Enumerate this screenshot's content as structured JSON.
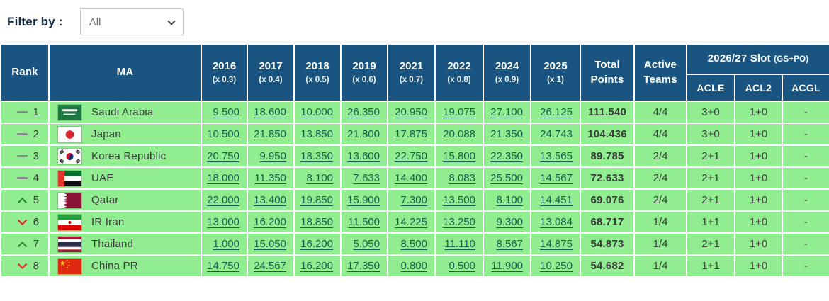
{
  "filter": {
    "label": "Filter by :",
    "value": "All",
    "options": [
      "All"
    ]
  },
  "table": {
    "header": {
      "rank": "Rank",
      "ma": "MA",
      "years": [
        {
          "year": "2016",
          "mult": "(x 0.3)"
        },
        {
          "year": "2017",
          "mult": "(x 0.4)"
        },
        {
          "year": "2018",
          "mult": "(x 0.5)"
        },
        {
          "year": "2019",
          "mult": "(x 0.6)"
        },
        {
          "year": "2021",
          "mult": "(x 0.7)"
        },
        {
          "year": "2022",
          "mult": "(x 0.8)"
        },
        {
          "year": "2024",
          "mult": "(x 0.9)"
        },
        {
          "year": "2025",
          "mult": "(x 1)"
        }
      ],
      "total": "Total Points",
      "active": "Active Teams",
      "slot_title": "2026/27 Slot",
      "slot_subtitle": "(GS+PO)",
      "slot_cols": [
        "ACLE",
        "ACL2",
        "ACGL"
      ]
    },
    "rows": [
      {
        "rank": "1",
        "trend": "same",
        "country": "Saudi Arabia",
        "flag": "sa",
        "scores": [
          "9.500",
          "18.600",
          "10.000",
          "26.350",
          "20.950",
          "19.075",
          "27.100",
          "26.125"
        ],
        "total": "111.540",
        "active": "4/4",
        "acle": "3+0",
        "acl2": "1+0",
        "acgl": "-"
      },
      {
        "rank": "2",
        "trend": "same",
        "country": "Japan",
        "flag": "jp",
        "scores": [
          "10.500",
          "21.850",
          "13.850",
          "21.800",
          "17.875",
          "20.088",
          "21.350",
          "24.743"
        ],
        "total": "104.436",
        "active": "4/4",
        "acle": "3+0",
        "acl2": "1+0",
        "acgl": "-"
      },
      {
        "rank": "3",
        "trend": "same",
        "country": "Korea Republic",
        "flag": "kr",
        "scores": [
          "20.750",
          "9.950",
          "18.350",
          "13.600",
          "22.750",
          "15.800",
          "22.350",
          "13.565"
        ],
        "total": "89.785",
        "active": "2/4",
        "acle": "2+1",
        "acl2": "1+0",
        "acgl": "-"
      },
      {
        "rank": "4",
        "trend": "same",
        "country": "UAE",
        "flag": "ae",
        "scores": [
          "18.000",
          "11.350",
          "8.100",
          "7.633",
          "14.400",
          "8.083",
          "25.500",
          "14.567"
        ],
        "total": "72.633",
        "active": "2/4",
        "acle": "2+1",
        "acl2": "1+0",
        "acgl": "-"
      },
      {
        "rank": "5",
        "trend": "up",
        "country": "Qatar",
        "flag": "qa",
        "scores": [
          "22.000",
          "13.400",
          "19.850",
          "15.900",
          "7.300",
          "13.500",
          "8.100",
          "14.451"
        ],
        "total": "69.076",
        "active": "2/4",
        "acle": "2+1",
        "acl2": "1+0",
        "acgl": "-"
      },
      {
        "rank": "6",
        "trend": "down",
        "country": "IR Iran",
        "flag": "ir",
        "scores": [
          "13.000",
          "16.200",
          "18.850",
          "11.500",
          "14.225",
          "13.250",
          "9.300",
          "13.084"
        ],
        "total": "68.717",
        "active": "1/4",
        "acle": "1+1",
        "acl2": "1+0",
        "acgl": "-"
      },
      {
        "rank": "7",
        "trend": "up",
        "country": "Thailand",
        "flag": "th",
        "scores": [
          "1.000",
          "15.050",
          "16.200",
          "5.050",
          "8.500",
          "11.110",
          "8.567",
          "14.875"
        ],
        "total": "54.873",
        "active": "1/4",
        "acle": "2+1",
        "acl2": "1+0",
        "acgl": "-"
      },
      {
        "rank": "8",
        "trend": "down",
        "country": "China PR",
        "flag": "cn",
        "scores": [
          "14.750",
          "24.567",
          "16.200",
          "17.350",
          "0.800",
          "0.500",
          "11.900",
          "10.250"
        ],
        "total": "54.682",
        "active": "1/4",
        "acle": "1+1",
        "acl2": "1+0",
        "acgl": "-"
      }
    ]
  },
  "colors": {
    "header_bg": "#1a5480",
    "row_bg": "#90ee90",
    "link": "#15604d",
    "rank_up": "#2e8b2e",
    "rank_down": "#cc3333",
    "rank_same": "#8c8c8c",
    "label_text": "#14324f"
  }
}
